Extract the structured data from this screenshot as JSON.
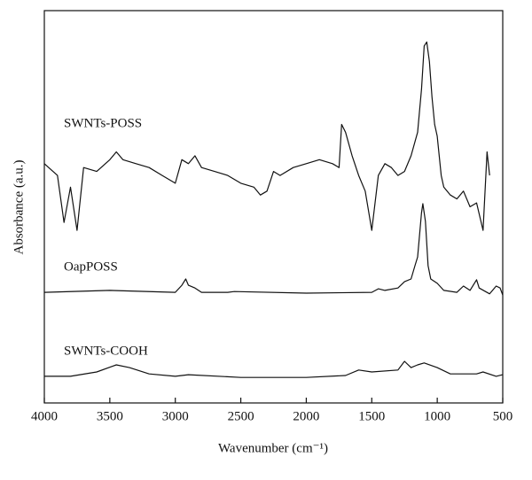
{
  "chart_data": {
    "type": "line",
    "xlabel": "Wavenumber (cm⁻¹)",
    "ylabel": "Absorbance (a.u.)",
    "xlim": [
      4000,
      500
    ],
    "xticks": [
      4000,
      3500,
      3000,
      2500,
      2000,
      1500,
      1000,
      500
    ],
    "ylim": [
      0,
      100
    ],
    "series": [
      {
        "name": "SWNTs-POSS",
        "color": "#111111",
        "x": [
          4000,
          3900,
          3850,
          3800,
          3750,
          3700,
          3600,
          3500,
          3450,
          3400,
          3300,
          3200,
          3100,
          3000,
          2950,
          2900,
          2850,
          2800,
          2700,
          2600,
          2500,
          2400,
          2350,
          2300,
          2250,
          2200,
          2100,
          2000,
          1900,
          1800,
          1750,
          1730,
          1700,
          1650,
          1600,
          1550,
          1500,
          1450,
          1400,
          1350,
          1300,
          1250,
          1200,
          1150,
          1120,
          1100,
          1080,
          1060,
          1040,
          1020,
          1000,
          970,
          950,
          900,
          850,
          800,
          750,
          700,
          650,
          620,
          600
        ],
        "values": [
          61,
          58,
          46,
          55,
          44,
          60,
          59,
          62,
          64,
          62,
          61,
          60,
          58,
          56,
          62,
          61,
          63,
          60,
          59,
          58,
          56,
          55,
          53,
          54,
          59,
          58,
          60,
          61,
          62,
          61,
          60,
          71,
          69,
          63,
          58,
          54,
          44,
          58,
          61,
          60,
          58,
          59,
          63,
          69,
          80,
          91,
          92,
          87,
          78,
          71,
          68,
          58,
          55,
          53,
          52,
          54,
          50,
          51,
          44,
          64,
          58
        ]
      },
      {
        "name": "OapPOSS",
        "color": "#111111",
        "x": [
          4000,
          3500,
          3000,
          2950,
          2920,
          2900,
          2850,
          2800,
          2600,
          2550,
          2000,
          1500,
          1450,
          1400,
          1300,
          1250,
          1200,
          1170,
          1150,
          1120,
          1110,
          1090,
          1070,
          1050,
          1000,
          950,
          850,
          800,
          750,
          700,
          680,
          600,
          550,
          520,
          500
        ],
        "values": [
          28.2,
          28.7,
          28.2,
          30.0,
          31.6,
          30.0,
          29.3,
          28.2,
          28.2,
          28.4,
          28.0,
          28.2,
          29.1,
          28.7,
          29.3,
          30.9,
          31.6,
          35.0,
          37.2,
          48.5,
          50.8,
          46.3,
          35.0,
          31.6,
          30.5,
          28.7,
          28.2,
          29.8,
          28.7,
          31.4,
          29.3,
          27.8,
          29.8,
          29.3,
          27.5
        ]
      },
      {
        "name": "SWNTs-COOH",
        "color": "#111111",
        "x": [
          4000,
          3800,
          3600,
          3450,
          3350,
          3200,
          3000,
          2900,
          2500,
          2000,
          1700,
          1600,
          1500,
          1300,
          1250,
          1200,
          1150,
          1100,
          1000,
          900,
          700,
          650,
          550,
          500
        ],
        "values": [
          6.8,
          6.8,
          7.9,
          9.7,
          9.0,
          7.4,
          6.8,
          7.2,
          6.5,
          6.5,
          7.0,
          8.4,
          7.9,
          8.4,
          10.6,
          9.0,
          9.7,
          10.2,
          9.0,
          7.4,
          7.4,
          7.9,
          6.8,
          7.2
        ]
      }
    ]
  }
}
